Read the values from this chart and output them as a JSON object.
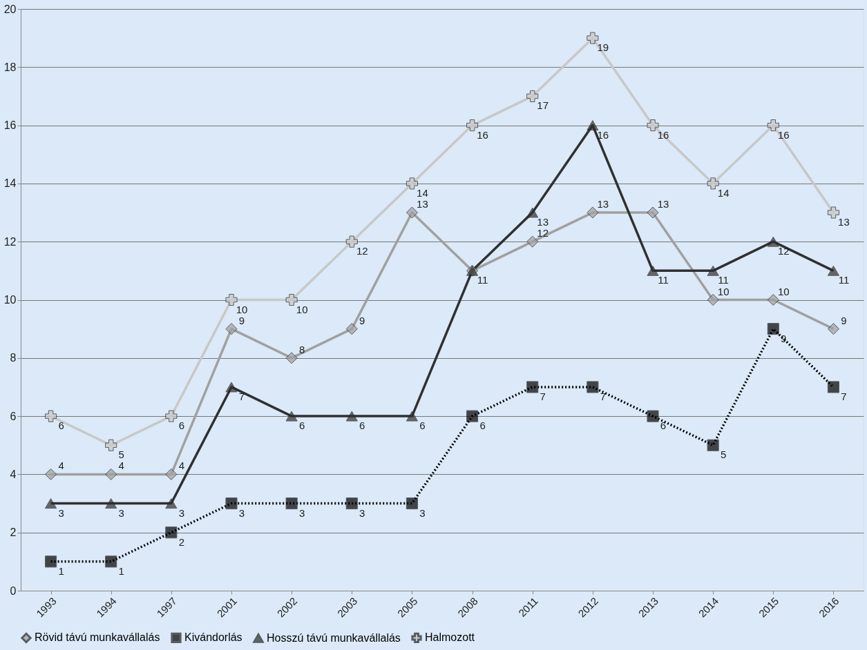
{
  "chart_data": {
    "type": "line",
    "categories": [
      "1993",
      "1994",
      "1997",
      "2001",
      "2002",
      "2003",
      "2005",
      "2008",
      "2011",
      "2012",
      "2013",
      "2014",
      "2015",
      "2016"
    ],
    "ylim": [
      0,
      20
    ],
    "yticks": [
      0,
      2,
      4,
      6,
      8,
      10,
      12,
      14,
      16,
      18,
      20
    ],
    "grid": "y",
    "legend": "bottom",
    "data_labels": true,
    "series": [
      {
        "name": "Rövid távú munkavállalás",
        "color": "#a0a0a0",
        "marker": "diamond",
        "line_style": "solid",
        "values": [
          4,
          4,
          4,
          9,
          8,
          9,
          13,
          11,
          12,
          13,
          13,
          10,
          10,
          9
        ],
        "value_labels": [
          "4",
          "4",
          "4",
          "9",
          "8",
          "9",
          "13",
          null,
          "12",
          "13",
          "13",
          "10",
          "10",
          "9"
        ]
      },
      {
        "name": "Kivándorlás",
        "color": "#000000",
        "marker": "square",
        "line_style": "dotted",
        "values": [
          1,
          1,
          2,
          3,
          3,
          3,
          3,
          6,
          7,
          7,
          6,
          5,
          9,
          7
        ]
      },
      {
        "name": "Hosszú távú munkavállalás",
        "color": "#303030",
        "marker": "triangle",
        "line_style": "solid",
        "values": [
          3,
          3,
          3,
          7,
          6,
          6,
          6,
          11,
          13,
          16,
          11,
          11,
          12,
          11
        ]
      },
      {
        "name": "Halmozott",
        "color": "#c8c8c8",
        "marker": "cross",
        "line_style": "solid",
        "values": [
          6,
          5,
          6,
          10,
          10,
          12,
          14,
          16,
          17,
          19,
          16,
          14,
          16,
          13
        ]
      }
    ]
  }
}
